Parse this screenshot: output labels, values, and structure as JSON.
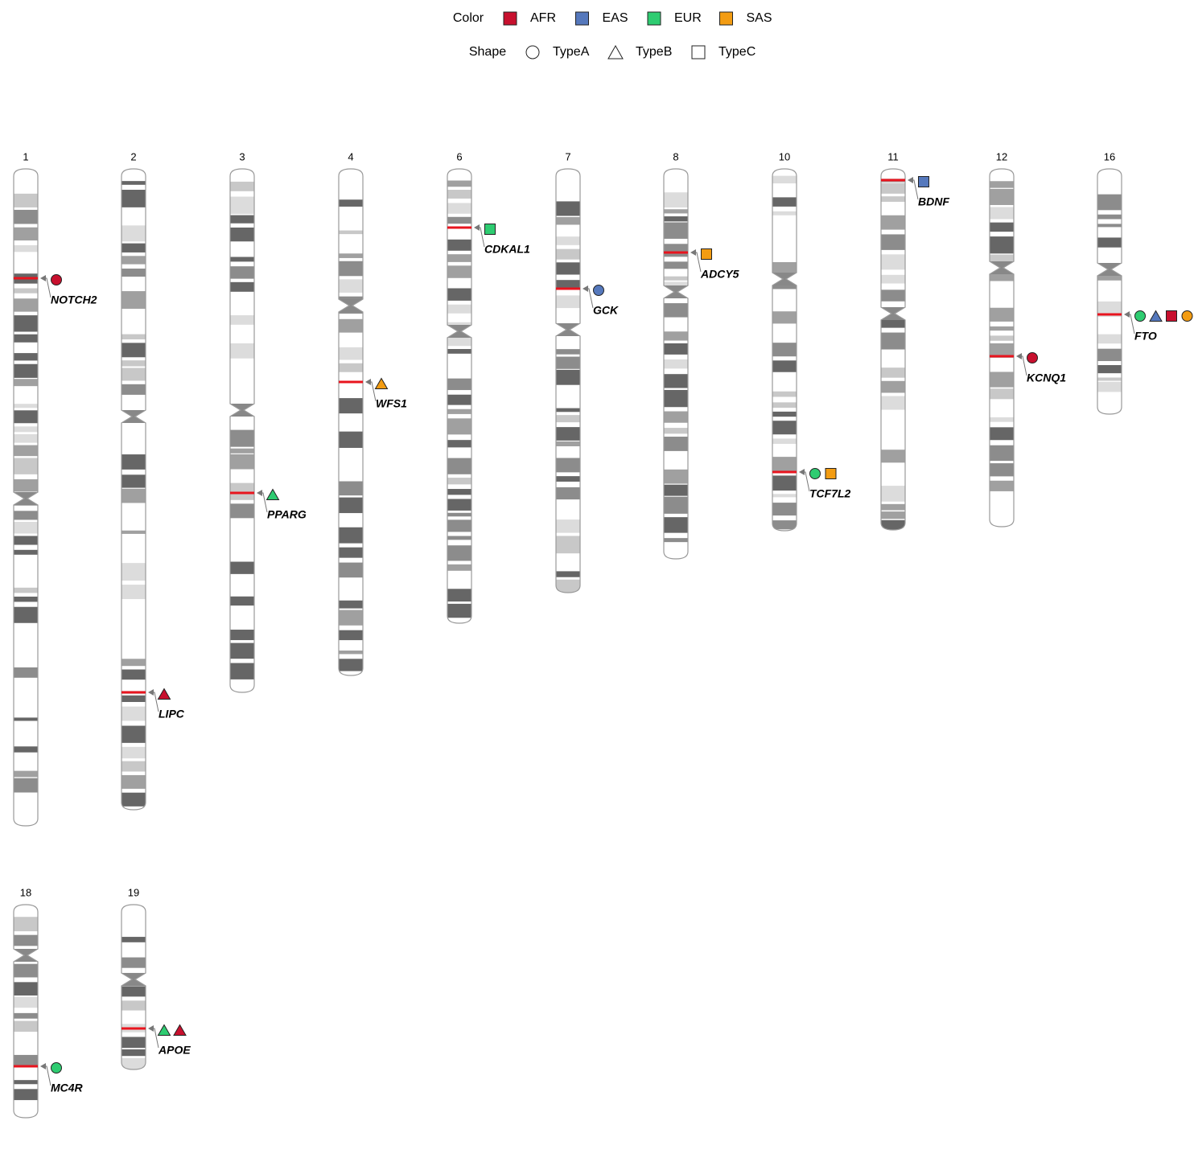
{
  "legend": {
    "color_title": "Color",
    "colors": [
      {
        "name": "AFR",
        "color": "#c8102e"
      },
      {
        "name": "EAS",
        "color": "#5578bc"
      },
      {
        "name": "EUR",
        "color": "#2ecc71"
      },
      {
        "name": "SAS",
        "color": "#f39c12"
      }
    ],
    "shape_title": "Shape",
    "shapes": [
      "TypeA",
      "TypeB",
      "TypeC"
    ]
  },
  "chromosomes": [
    {
      "name": "1",
      "genes": [
        {
          "label": "NOTCH2",
          "markers": [
            {
              "population": "AFR",
              "shape": "TypeA"
            }
          ]
        }
      ]
    },
    {
      "name": "2",
      "genes": [
        {
          "label": "LIPC",
          "markers": [
            {
              "population": "AFR",
              "shape": "TypeB"
            }
          ]
        }
      ]
    },
    {
      "name": "3",
      "genes": [
        {
          "label": "PPARG",
          "markers": [
            {
              "population": "EUR",
              "shape": "TypeB"
            }
          ]
        }
      ]
    },
    {
      "name": "4",
      "genes": [
        {
          "label": "WFS1",
          "markers": [
            {
              "population": "SAS",
              "shape": "TypeB"
            }
          ]
        }
      ]
    },
    {
      "name": "6",
      "genes": [
        {
          "label": "CDKAL1",
          "markers": [
            {
              "population": "EUR",
              "shape": "TypeC"
            }
          ]
        }
      ]
    },
    {
      "name": "7",
      "genes": [
        {
          "label": "GCK",
          "markers": [
            {
              "population": "EAS",
              "shape": "TypeA"
            }
          ]
        }
      ]
    },
    {
      "name": "8",
      "genes": [
        {
          "label": "ADCY5",
          "markers": [
            {
              "population": "SAS",
              "shape": "TypeC"
            }
          ]
        }
      ]
    },
    {
      "name": "10",
      "genes": [
        {
          "label": "TCF7L2",
          "markers": [
            {
              "population": "EUR",
              "shape": "TypeA"
            },
            {
              "population": "SAS",
              "shape": "TypeC"
            }
          ]
        }
      ]
    },
    {
      "name": "11",
      "genes": [
        {
          "label": "BDNF",
          "markers": [
            {
              "population": "EAS",
              "shape": "TypeC"
            }
          ]
        }
      ]
    },
    {
      "name": "12",
      "genes": [
        {
          "label": "KCNQ1",
          "markers": [
            {
              "population": "AFR",
              "shape": "TypeA"
            }
          ]
        }
      ]
    },
    {
      "name": "16",
      "genes": [
        {
          "label": "FTO",
          "markers": [
            {
              "population": "EUR",
              "shape": "TypeA"
            },
            {
              "population": "EAS",
              "shape": "TypeB"
            },
            {
              "population": "AFR",
              "shape": "TypeC"
            },
            {
              "population": "SAS",
              "shape": "TypeA"
            }
          ]
        }
      ]
    },
    {
      "name": "18",
      "genes": [
        {
          "label": "MC4R",
          "markers": [
            {
              "population": "EUR",
              "shape": "TypeA"
            }
          ]
        }
      ]
    },
    {
      "name": "19",
      "genes": [
        {
          "label": "APOE",
          "markers": [
            {
              "population": "EUR",
              "shape": "TypeB"
            },
            {
              "population": "AFR",
              "shape": "TypeB"
            }
          ]
        }
      ]
    }
  ]
}
